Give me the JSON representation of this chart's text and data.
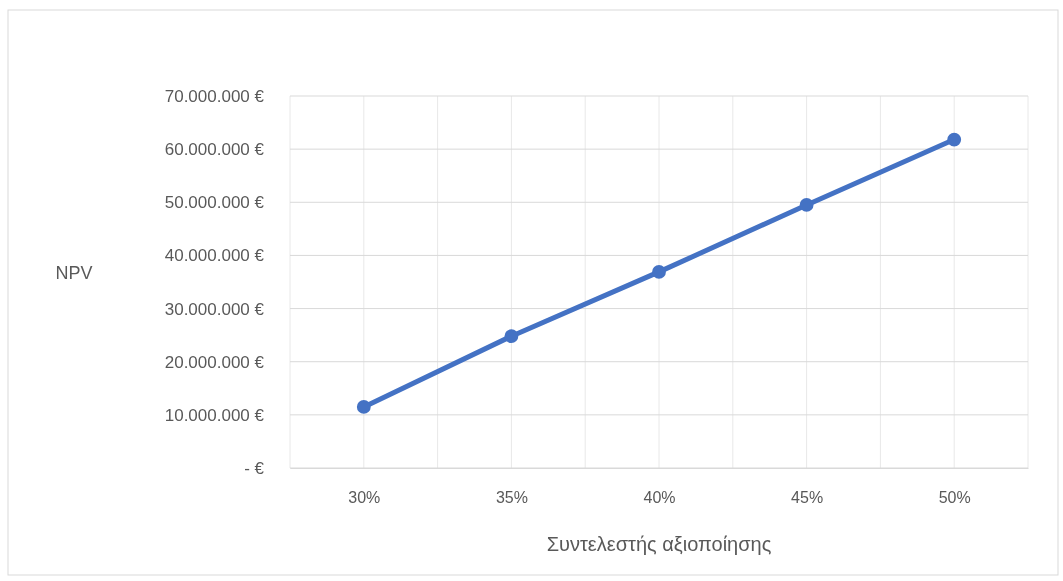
{
  "chart_data": {
    "type": "line",
    "xlabel": "Συντελεστής αξιοποίησης",
    "ylabel": "NPV",
    "categories": [
      "30%",
      "35%",
      "40%",
      "45%",
      "50%"
    ],
    "series": [
      {
        "color": "#4472c4",
        "values": [
          11500000,
          24800000,
          36900000,
          49500000,
          61800000
        ]
      }
    ],
    "ylim": [
      0,
      70000000
    ],
    "yticks": [
      {
        "value": 0,
        "label": "-   €"
      },
      {
        "value": 10000000,
        "label": "10.000.000 €"
      },
      {
        "value": 20000000,
        "label": "20.000.000 €"
      },
      {
        "value": 30000000,
        "label": "30.000.000 €"
      },
      {
        "value": 40000000,
        "label": "40.000.000 €"
      },
      {
        "value": 50000000,
        "label": "50.000.000 €"
      },
      {
        "value": 60000000,
        "label": "60.000.000 €"
      },
      {
        "value": 70000000,
        "label": "70.000.000 €"
      }
    ],
    "grid": true,
    "marker": "circle",
    "line_style": "solid"
  }
}
